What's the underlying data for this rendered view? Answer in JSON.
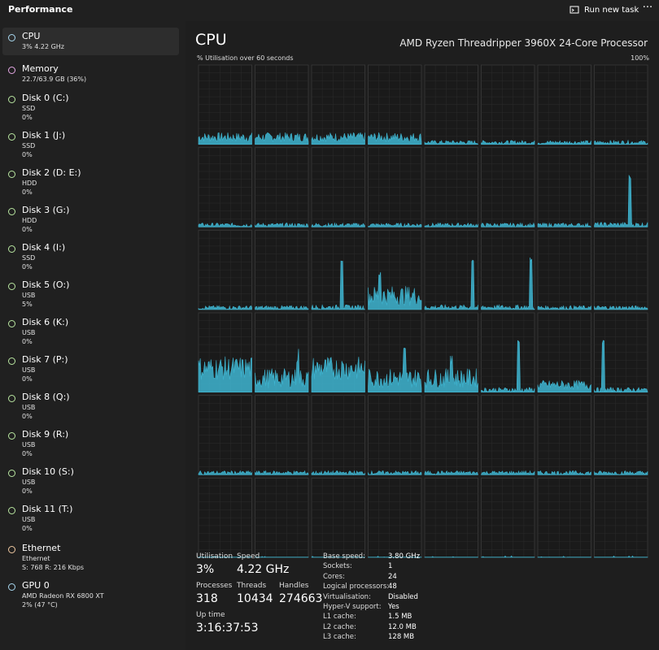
{
  "app": {
    "title": "Performance",
    "run_task_label": "Run new task",
    "more_label": "···"
  },
  "sidebar": {
    "items": [
      {
        "name": "CPU",
        "sub1": "3% 4.22 GHz",
        "sub2": "",
        "dot": "#a8d8f0"
      },
      {
        "name": "Memory",
        "sub1": "22.7/63.9 GB (36%)",
        "sub2": "",
        "dot": "#e6a8e6"
      },
      {
        "name": "Disk 0 (C:)",
        "sub1": "SSD",
        "sub2": "0%",
        "dot": "#b8e6a0"
      },
      {
        "name": "Disk 1 (J:)",
        "sub1": "SSD",
        "sub2": "0%",
        "dot": "#b8e6a0"
      },
      {
        "name": "Disk 2 (D: E:)",
        "sub1": "HDD",
        "sub2": "0%",
        "dot": "#b8e6a0"
      },
      {
        "name": "Disk 3 (G:)",
        "sub1": "HDD",
        "sub2": "0%",
        "dot": "#b8e6a0"
      },
      {
        "name": "Disk 4 (I:)",
        "sub1": "SSD",
        "sub2": "0%",
        "dot": "#b8e6a0"
      },
      {
        "name": "Disk 5 (O:)",
        "sub1": "USB",
        "sub2": "5%",
        "dot": "#b8e6a0"
      },
      {
        "name": "Disk 6 (K:)",
        "sub1": "USB",
        "sub2": "0%",
        "dot": "#b8e6a0"
      },
      {
        "name": "Disk 7 (P:)",
        "sub1": "USB",
        "sub2": "0%",
        "dot": "#b8e6a0"
      },
      {
        "name": "Disk 8 (Q:)",
        "sub1": "USB",
        "sub2": "0%",
        "dot": "#b8e6a0"
      },
      {
        "name": "Disk 9 (R:)",
        "sub1": "USB",
        "sub2": "0%",
        "dot": "#b8e6a0"
      },
      {
        "name": "Disk 10 (S:)",
        "sub1": "USB",
        "sub2": "0%",
        "dot": "#b8e6a0"
      },
      {
        "name": "Disk 11 (T:)",
        "sub1": "USB",
        "sub2": "0%",
        "dot": "#b8e6a0"
      },
      {
        "name": "Ethernet",
        "sub1": "Ethernet",
        "sub2": "S: 768 R: 216 Kbps",
        "dot": "#f0c8a0"
      },
      {
        "name": "GPU 0",
        "sub1": "AMD Radeon RX 6800 XT",
        "sub2": "2% (47 °C)",
        "dot": "#a8d8f0"
      }
    ]
  },
  "main": {
    "title": "CPU",
    "model": "AMD Ryzen Threadripper 3960X 24-Core Processor",
    "util_label": "% Utilisation over 60 seconds",
    "max_label": "100%",
    "graph_color": "#3fb6d2",
    "graph_count": 48,
    "activity_levels": [
      2,
      2,
      2,
      2,
      1,
      1,
      1,
      1,
      1,
      1,
      1,
      1,
      1,
      1,
      1,
      3,
      1,
      1,
      3,
      4,
      3,
      3,
      1,
      1,
      5,
      4,
      5,
      4,
      4,
      3,
      2,
      3,
      1,
      1,
      1,
      1,
      1,
      1,
      1,
      1,
      0,
      0,
      0,
      0,
      0,
      0,
      0,
      0
    ]
  },
  "stats": {
    "utilisation_label": "Utilisation",
    "utilisation_value": "3%",
    "speed_label": "Speed",
    "speed_value": "4.22 GHz",
    "processes_label": "Processes",
    "processes_value": "318",
    "threads_label": "Threads",
    "threads_value": "10434",
    "handles_label": "Handles",
    "handles_value": "274663",
    "uptime_label": "Up time",
    "uptime_value": "3:16:37:53"
  },
  "details": [
    {
      "key": "Base speed:",
      "value": "3.80 GHz"
    },
    {
      "key": "Sockets:",
      "value": "1"
    },
    {
      "key": "Cores:",
      "value": "24"
    },
    {
      "key": "Logical processors:",
      "value": "48"
    },
    {
      "key": "Virtualisation:",
      "value": "Disabled"
    },
    {
      "key": "Hyper-V support:",
      "value": "Yes"
    },
    {
      "key": "L1 cache:",
      "value": "1.5 MB"
    },
    {
      "key": "L2 cache:",
      "value": "12.0 MB"
    },
    {
      "key": "L3 cache:",
      "value": "128 MB"
    }
  ]
}
